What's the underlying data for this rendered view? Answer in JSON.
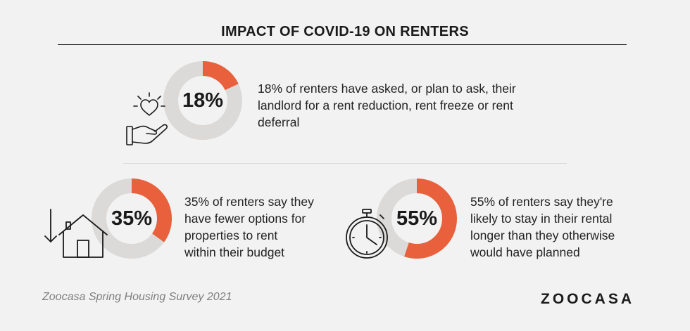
{
  "title": "IMPACT OF COVID-19 ON RENTERS",
  "chart_data": [
    {
      "type": "pie",
      "subtype": "donut",
      "label": "18%",
      "values": [
        18,
        82
      ],
      "categories": [
        "asked or plan to ask for rent reduction, freeze or deferral",
        "other"
      ],
      "description": "18% of renters have asked, or plan to ask, their landlord for a rent reduction, rent freeze or rent deferral",
      "lines": [
        "18% of renters have asked, or plan to ask, their",
        "landlord for a rent reduction, rent freeze or rent",
        "deferral"
      ]
    },
    {
      "type": "pie",
      "subtype": "donut",
      "label": "35%",
      "values": [
        35,
        65
      ],
      "categories": [
        "fewer options within budget",
        "other"
      ],
      "description": "35% of renters say they have fewer options for properties to rent within their budget",
      "lines": [
        "35% of renters say they",
        "have fewer options for",
        "properties to rent",
        "within their budget"
      ]
    },
    {
      "type": "pie",
      "subtype": "donut",
      "label": "55%",
      "values": [
        55,
        45
      ],
      "categories": [
        "likely to stay in rental longer",
        "other"
      ],
      "description": "55% of renters say they're likely to stay in their rental longer than they otherwise would have planned",
      "lines": [
        "55% of renters say they're",
        "likely to stay in their rental",
        "longer than they otherwise",
        "would have planned"
      ]
    }
  ],
  "colors": {
    "accent": "#e8603c",
    "track": "#dcdad8",
    "background": "#f2f2f2"
  },
  "icons": [
    "heart-hand-icon",
    "house-down-arrow-icon",
    "stopwatch-icon"
  ],
  "footer": {
    "source": "Zoocasa Spring Housing Survey 2021",
    "logo": "ZOOCASA"
  }
}
